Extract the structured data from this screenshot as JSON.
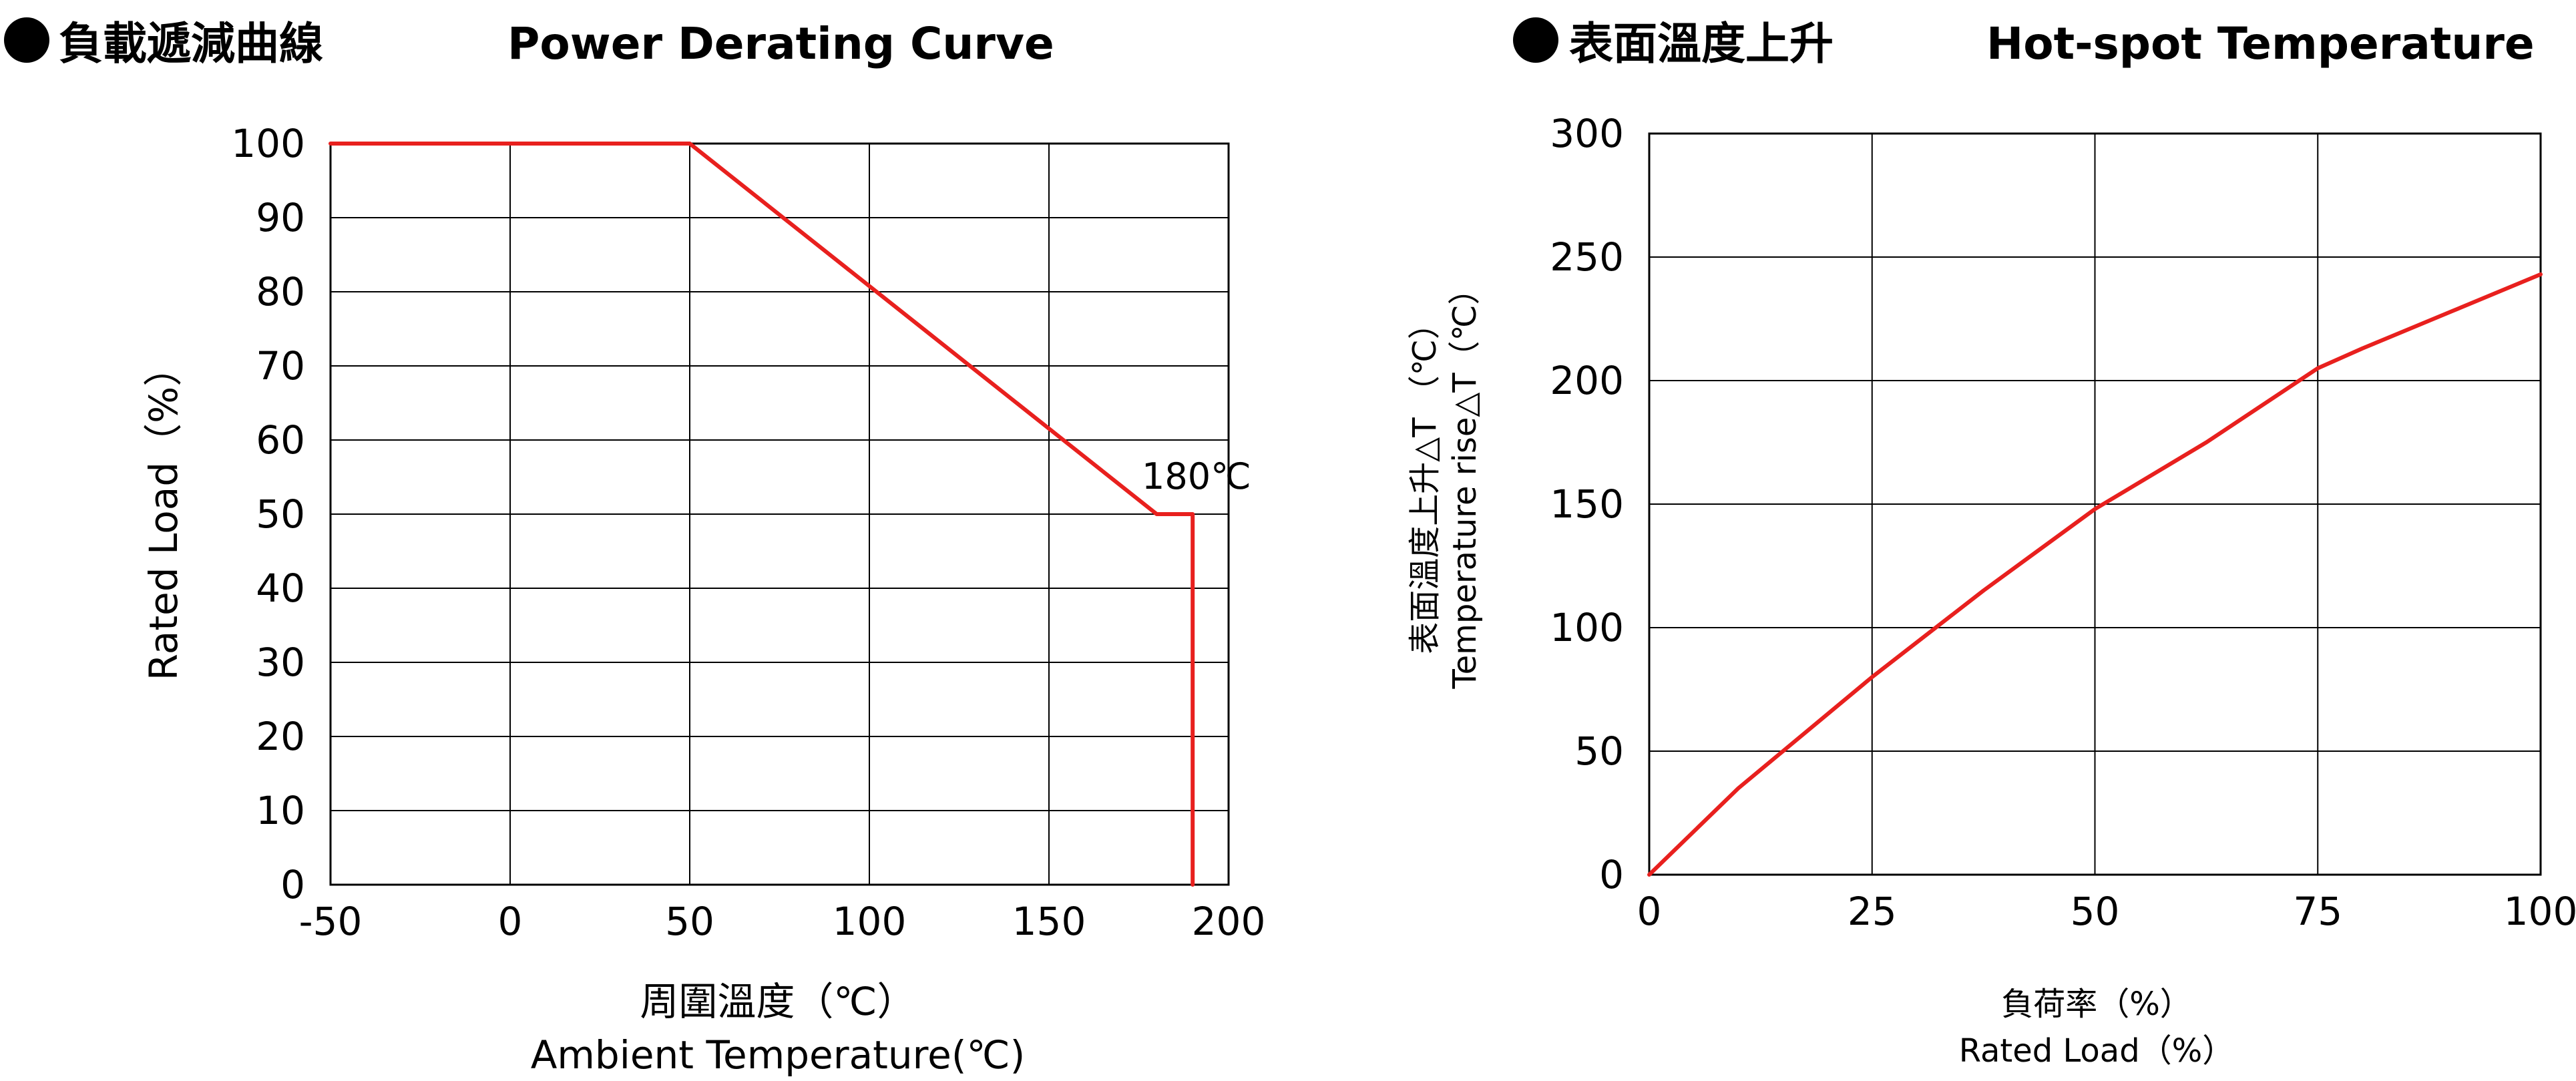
{
  "chart_data": [
    {
      "type": "line",
      "title_zh": "負載遞減曲線",
      "title_en": "Power Derating Curve",
      "xlabel_zh": "周圍溫度（℃）",
      "xlabel_en": "Ambient Temperature(℃)",
      "ylabel": "Rated Load（%）",
      "xlim": [
        -50,
        200
      ],
      "ylim": [
        0,
        100
      ],
      "xticks": [
        -50,
        0,
        50,
        100,
        150,
        200
      ],
      "yticks": [
        0,
        10,
        20,
        30,
        40,
        50,
        60,
        70,
        80,
        90,
        100
      ],
      "grid": true,
      "series": [
        {
          "x": [
            -50,
            50,
            180,
            190,
            190
          ],
          "y": [
            100,
            100,
            50,
            50,
            0
          ],
          "color": "#e8201e"
        }
      ],
      "annotations": [
        {
          "text": "180℃"
        }
      ]
    },
    {
      "type": "line",
      "title_zh": "表面溫度上升",
      "title_en": "Hot-spot Temperature",
      "xlabel_zh": "負荷率（%）",
      "xlabel_en": "Rated Load（%）",
      "ylabel_zh": "表面溫度上升△T （℃）",
      "ylabel_en": "Temperature rise△T（℃）",
      "xlim": [
        0,
        100
      ],
      "ylim": [
        0,
        300
      ],
      "xticks": [
        0,
        25,
        50,
        75,
        100
      ],
      "yticks": [
        0,
        50,
        100,
        150,
        200,
        250,
        300
      ],
      "grid": true,
      "series": [
        {
          "x": [
            0,
            10,
            25,
            37.5,
            50,
            62.5,
            75,
            80,
            90,
            100
          ],
          "y": [
            0,
            35,
            80,
            115,
            148,
            175,
            205,
            213,
            228,
            243
          ],
          "color": "#e8201e"
        }
      ]
    }
  ]
}
